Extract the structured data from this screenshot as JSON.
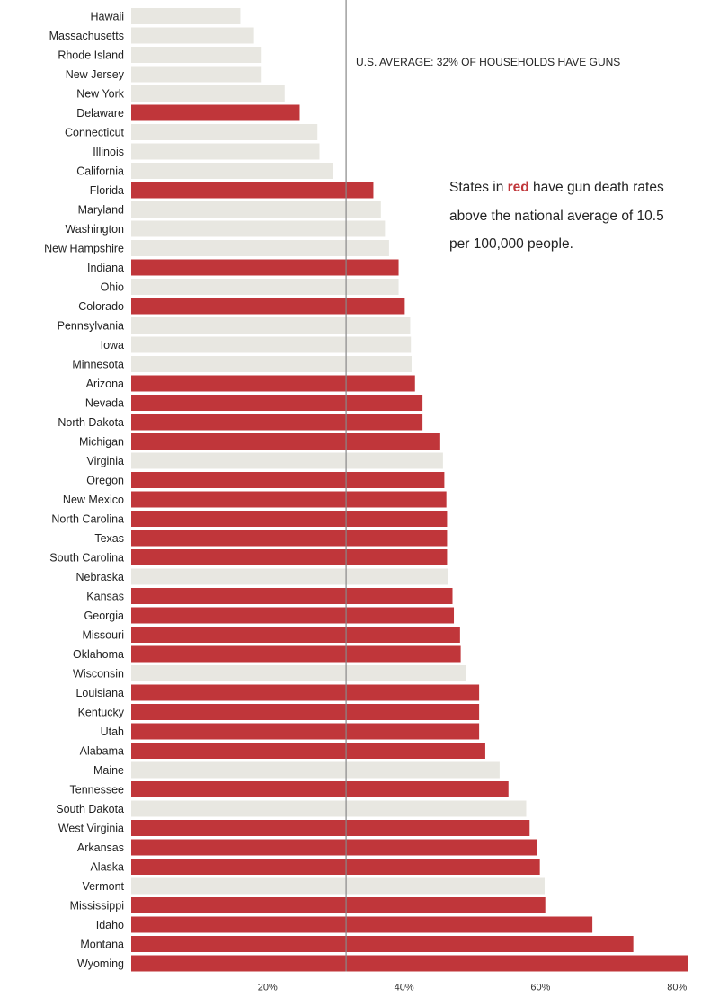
{
  "chart_data": {
    "type": "bar",
    "orientation": "horizontal",
    "categories": [
      "Hawaii",
      "Massachusetts",
      "Rhode Island",
      "New Jersey",
      "New York",
      "Delaware",
      "Connecticut",
      "Illinois",
      "California",
      "Florida",
      "Maryland",
      "Washington",
      "New Hampshire",
      "Indiana",
      "Ohio",
      "Colorado",
      "Pennsylvania",
      "Iowa",
      "Minnesota",
      "Arizona",
      "Nevada",
      "North Dakota",
      "Michigan",
      "Virginia",
      "Oregon",
      "New Mexico",
      "North Carolina",
      "Texas",
      "South Carolina",
      "Nebraska",
      "Kansas",
      "Georgia",
      "Missouri",
      "Oklahoma",
      "Wisconsin",
      "Louisiana",
      "Kentucky",
      "Utah",
      "Alabama",
      "Maine",
      "Tennessee",
      "South Dakota",
      "West Virginia",
      "Arkansas",
      "Alaska",
      "Vermont",
      "Mississippi",
      "Idaho",
      "Montana",
      "Wyoming"
    ],
    "values": [
      16,
      18,
      19,
      19,
      22.5,
      24.7,
      27.3,
      27.6,
      29.6,
      35.5,
      36.6,
      37.2,
      37.8,
      39.2,
      39.2,
      40.1,
      40.9,
      41,
      41.1,
      41.6,
      42.7,
      42.7,
      45.3,
      45.7,
      45.9,
      46.2,
      46.3,
      46.3,
      46.3,
      46.4,
      47.1,
      47.3,
      48.2,
      48.3,
      49.1,
      51,
      51,
      51,
      51.9,
      54,
      55.3,
      57.9,
      58.4,
      59.5,
      59.9,
      60.6,
      60.7,
      67.6,
      73.6,
      81.6
    ],
    "above_average_death_rate": [
      false,
      false,
      false,
      false,
      false,
      true,
      false,
      false,
      false,
      true,
      false,
      false,
      false,
      true,
      false,
      true,
      false,
      false,
      false,
      true,
      true,
      true,
      true,
      false,
      true,
      true,
      true,
      true,
      true,
      false,
      true,
      true,
      true,
      true,
      false,
      true,
      true,
      true,
      true,
      false,
      true,
      false,
      true,
      true,
      true,
      false,
      true,
      true,
      true,
      true
    ],
    "xlim": [
      0,
      83
    ],
    "xticks": [
      20,
      40,
      60,
      80
    ],
    "xtick_labels": [
      "20%",
      "40%",
      "60%",
      "80%"
    ],
    "reference_line": {
      "value": 31.5,
      "label": "U.S. AVERAGE: 32% OF HOUSEHOLDS HAVE GUNS"
    },
    "note": {
      "before": "States in ",
      "highlight": "red",
      "after": " have gun death rates above the national average of 10.5 per 100,000 people."
    },
    "colors": {
      "highlight": "#c0363a",
      "default": "#e8e7e1",
      "reference_line": "#888888"
    },
    "grid": false
  }
}
